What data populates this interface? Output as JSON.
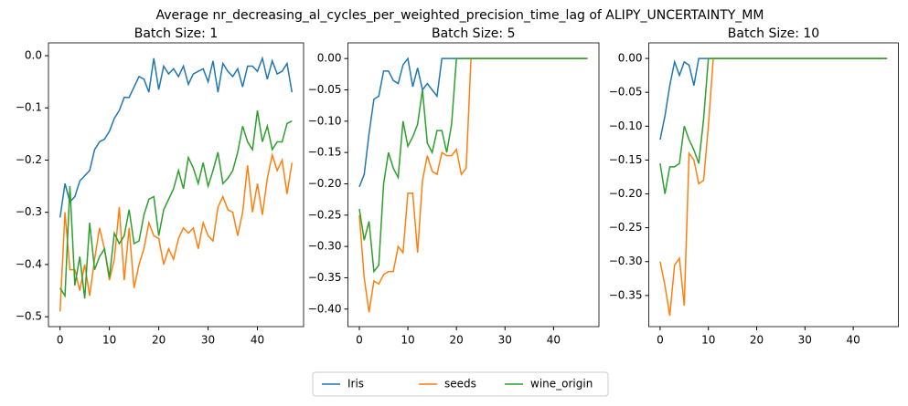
{
  "title": "Average nr_decreasing_al_cycles_per_weighted_precision_time_lag of ALIPY_UNCERTAINTY_MM",
  "chart_data": [
    {
      "type": "line",
      "title": "Batch Size: 1",
      "x": [
        0,
        1,
        2,
        3,
        4,
        5,
        6,
        7,
        8,
        9,
        10,
        11,
        12,
        13,
        14,
        15,
        16,
        17,
        18,
        19,
        20,
        21,
        22,
        23,
        24,
        25,
        26,
        27,
        28,
        29,
        30,
        31,
        32,
        33,
        34,
        35,
        36,
        37,
        38,
        39,
        40,
        41,
        42,
        43,
        44,
        45,
        46,
        47
      ],
      "xlim": [
        -2.35,
        49.35
      ],
      "xticks": [
        0,
        10,
        20,
        30,
        40
      ],
      "ylim": [
        -0.519,
        0.0245
      ],
      "yticks": [
        {
          "value": -0.5,
          "label": "−0.5"
        },
        {
          "value": -0.4,
          "label": "−0.4"
        },
        {
          "value": -0.3,
          "label": "−0.3"
        },
        {
          "value": -0.2,
          "label": "−0.2"
        },
        {
          "value": -0.1,
          "label": "−0.1"
        },
        {
          "value": 0,
          "label": "0.0"
        }
      ],
      "series": [
        {
          "name": "Iris",
          "color": "#1f77b4",
          "values": [
            -0.31,
            -0.245,
            -0.28,
            -0.27,
            -0.24,
            -0.23,
            -0.22,
            -0.18,
            -0.165,
            -0.16,
            -0.145,
            -0.12,
            -0.105,
            -0.08,
            -0.08,
            -0.06,
            -0.04,
            -0.045,
            -0.07,
            -0.005,
            -0.065,
            -0.02,
            -0.035,
            -0.025,
            -0.04,
            -0.02,
            -0.055,
            -0.035,
            -0.03,
            -0.025,
            -0.05,
            -0.01,
            -0.07,
            -0.015,
            -0.03,
            -0.04,
            -0.025,
            -0.06,
            -0.02,
            -0.02,
            -0.03,
            -0.005,
            -0.045,
            -0.01,
            -0.035,
            -0.03,
            -0.015,
            -0.07
          ]
        },
        {
          "name": "seeds",
          "color": "#ff7f0e",
          "values": [
            -0.49,
            -0.3,
            -0.41,
            -0.41,
            -0.45,
            -0.4,
            -0.46,
            -0.39,
            -0.33,
            -0.37,
            -0.43,
            -0.39,
            -0.29,
            -0.43,
            -0.33,
            -0.445,
            -0.4,
            -0.37,
            -0.32,
            -0.345,
            -0.35,
            -0.4,
            -0.37,
            -0.39,
            -0.35,
            -0.33,
            -0.34,
            -0.33,
            -0.37,
            -0.32,
            -0.345,
            -0.355,
            -0.29,
            -0.27,
            -0.295,
            -0.3,
            -0.345,
            -0.3,
            -0.21,
            -0.3,
            -0.245,
            -0.305,
            -0.235,
            -0.19,
            -0.22,
            -0.2,
            -0.265,
            -0.205
          ]
        },
        {
          "name": "wine_origin",
          "color": "#2ca02c",
          "values": [
            -0.445,
            -0.46,
            -0.25,
            -0.44,
            -0.385,
            -0.465,
            -0.32,
            -0.41,
            -0.385,
            -0.37,
            -0.425,
            -0.34,
            -0.36,
            -0.345,
            -0.295,
            -0.36,
            -0.355,
            -0.305,
            -0.275,
            -0.27,
            -0.345,
            -0.295,
            -0.275,
            -0.255,
            -0.22,
            -0.255,
            -0.195,
            -0.215,
            -0.245,
            -0.205,
            -0.25,
            -0.22,
            -0.185,
            -0.245,
            -0.235,
            -0.22,
            -0.185,
            -0.135,
            -0.165,
            -0.18,
            -0.105,
            -0.165,
            -0.135,
            -0.18,
            -0.165,
            -0.165,
            -0.13,
            -0.125
          ]
        }
      ]
    },
    {
      "type": "line",
      "title": "Batch Size: 5",
      "x": [
        0,
        1,
        2,
        3,
        4,
        5,
        6,
        7,
        8,
        9,
        10,
        11,
        12,
        13,
        14,
        15,
        16,
        17,
        18,
        19,
        20,
        21,
        22,
        23,
        24,
        25,
        26,
        27,
        28,
        29,
        30,
        31,
        32,
        33,
        34,
        35,
        36,
        37,
        38,
        39,
        40,
        41,
        42,
        43,
        44,
        45,
        46,
        47
      ],
      "xlim": [
        -2.35,
        49.35
      ],
      "xticks": [
        0,
        10,
        20,
        30,
        40
      ],
      "ylim": [
        -0.428,
        0.025
      ],
      "yticks": [
        {
          "value": -0.4,
          "label": "−0.40"
        },
        {
          "value": -0.35,
          "label": "−0.35"
        },
        {
          "value": -0.3,
          "label": "−0.30"
        },
        {
          "value": -0.25,
          "label": "−0.25"
        },
        {
          "value": -0.2,
          "label": "−0.20"
        },
        {
          "value": -0.15,
          "label": "−0.15"
        },
        {
          "value": -0.1,
          "label": "−0.10"
        },
        {
          "value": -0.05,
          "label": "−0.05"
        },
        {
          "value": 0,
          "label": "0.00"
        }
      ],
      "series": [
        {
          "color": "#1f77b4",
          "values": [
            -0.205,
            -0.185,
            -0.12,
            -0.065,
            -0.06,
            -0.02,
            -0.02,
            -0.035,
            -0.04,
            -0.01,
            0,
            -0.045,
            -0.015,
            -0.05,
            -0.04,
            -0.05,
            -0.06,
            0,
            0,
            0,
            0,
            0,
            0,
            0,
            0,
            0,
            0,
            0,
            0,
            0,
            0,
            0,
            0,
            0,
            0,
            0,
            0,
            0,
            0,
            0,
            0,
            0,
            0,
            0,
            0,
            0,
            0,
            0
          ]
        },
        {
          "color": "#ff7f0e",
          "values": [
            -0.25,
            -0.35,
            -0.405,
            -0.355,
            -0.36,
            -0.345,
            -0.34,
            -0.34,
            -0.3,
            -0.31,
            -0.215,
            -0.215,
            -0.31,
            -0.195,
            -0.155,
            -0.18,
            -0.185,
            -0.15,
            -0.155,
            -0.155,
            -0.145,
            -0.185,
            -0.175,
            0,
            0,
            0,
            0,
            0,
            0,
            0,
            0,
            0,
            0,
            0,
            0,
            0,
            0,
            0,
            0,
            0,
            0,
            0,
            0,
            0,
            0,
            0,
            0,
            0
          ]
        },
        {
          "color": "#2ca02c",
          "values": [
            -0.24,
            -0.29,
            -0.26,
            -0.34,
            -0.33,
            -0.2,
            -0.15,
            -0.175,
            -0.19,
            -0.1,
            -0.14,
            -0.125,
            -0.105,
            -0.05,
            -0.135,
            -0.15,
            -0.115,
            -0.115,
            -0.15,
            -0.105,
            0,
            0,
            0,
            0,
            0,
            0,
            0,
            0,
            0,
            0,
            0,
            0,
            0,
            0,
            0,
            0,
            0,
            0,
            0,
            0,
            0,
            0,
            0,
            0,
            0,
            0,
            0,
            0
          ]
        }
      ]
    },
    {
      "type": "line",
      "title": "Batch Size: 10",
      "x": [
        0,
        1,
        2,
        3,
        4,
        5,
        6,
        7,
        8,
        9,
        10,
        11,
        12,
        13,
        14,
        15,
        16,
        17,
        18,
        19,
        20,
        21,
        22,
        23,
        24,
        25,
        26,
        27,
        28,
        29,
        30,
        31,
        32,
        33,
        34,
        35,
        36,
        37,
        38,
        39,
        40,
        41,
        42,
        43,
        44,
        45,
        46,
        47
      ],
      "xlim": [
        -2.35,
        49.35
      ],
      "xticks": [
        0,
        10,
        20,
        30,
        40
      ],
      "ylim": [
        -0.396,
        0.023
      ],
      "yticks": [
        {
          "value": -0.35,
          "label": "−0.35"
        },
        {
          "value": -0.3,
          "label": "−0.30"
        },
        {
          "value": -0.25,
          "label": "−0.25"
        },
        {
          "value": -0.2,
          "label": "−0.20"
        },
        {
          "value": -0.15,
          "label": "−0.15"
        },
        {
          "value": -0.1,
          "label": "−0.10"
        },
        {
          "value": -0.05,
          "label": "−0.05"
        },
        {
          "value": 0,
          "label": "0.00"
        }
      ],
      "series": [
        {
          "color": "#1f77b4",
          "values": [
            -0.12,
            -0.085,
            -0.04,
            -0.005,
            -0.025,
            -0.005,
            -0.01,
            -0.04,
            0,
            0,
            0,
            0,
            0,
            0,
            0,
            0,
            0,
            0,
            0,
            0,
            0,
            0,
            0,
            0,
            0,
            0,
            0,
            0,
            0,
            0,
            0,
            0,
            0,
            0,
            0,
            0,
            0,
            0,
            0,
            0,
            0,
            0,
            0,
            0,
            0,
            0,
            0,
            0
          ]
        },
        {
          "color": "#ff7f0e",
          "values": [
            -0.3,
            -0.335,
            -0.38,
            -0.305,
            -0.295,
            -0.365,
            -0.14,
            -0.15,
            -0.185,
            -0.18,
            -0.1,
            0,
            0,
            0,
            0,
            0,
            0,
            0,
            0,
            0,
            0,
            0,
            0,
            0,
            0,
            0,
            0,
            0,
            0,
            0,
            0,
            0,
            0,
            0,
            0,
            0,
            0,
            0,
            0,
            0,
            0,
            0,
            0,
            0,
            0,
            0,
            0,
            0
          ]
        },
        {
          "color": "#2ca02c",
          "values": [
            -0.155,
            -0.2,
            -0.16,
            -0.16,
            -0.155,
            -0.1,
            -0.12,
            -0.135,
            -0.155,
            -0.09,
            0,
            0,
            0,
            0,
            0,
            0,
            0,
            0,
            0,
            0,
            0,
            0,
            0,
            0,
            0,
            0,
            0,
            0,
            0,
            0,
            0,
            0,
            0,
            0,
            0,
            0,
            0,
            0,
            0,
            0,
            0,
            0,
            0,
            0,
            0,
            0,
            0,
            0
          ]
        }
      ]
    }
  ]
}
